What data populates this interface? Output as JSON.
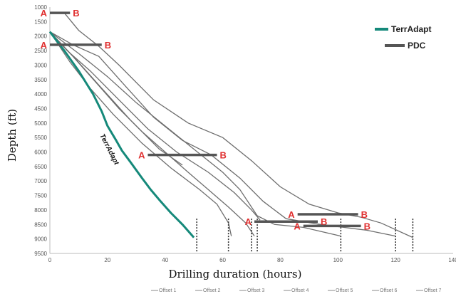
{
  "chart_data": {
    "type": "line",
    "xlabel": "Drilling duration (hours)",
    "ylabel": "Depth (ft)",
    "xlim": [
      0,
      140
    ],
    "ylim": [
      9500,
      1000
    ],
    "x_ticks": [
      "0",
      "20",
      "40",
      "60",
      "80",
      "100",
      "120",
      "140"
    ],
    "y_ticks": [
      "1000",
      "1500",
      "2000",
      "2500",
      "3000",
      "3500",
      "4000",
      "4500",
      "5000",
      "5500",
      "6000",
      "6500",
      "7000",
      "7500",
      "8000",
      "8500",
      "9000",
      "9500"
    ],
    "grid": false,
    "legend_placement": "top-right",
    "legend": [
      {
        "label": "TerrAdapt",
        "color": "#15897a"
      },
      {
        "label": "PDC",
        "color": "#555555"
      }
    ],
    "series_annotation": "TerrAdapt",
    "terradapt": {
      "color": "#15897a",
      "points": [
        [
          0,
          1850
        ],
        [
          5,
          2500
        ],
        [
          10,
          3200
        ],
        [
          15,
          4000
        ],
        [
          18,
          4600
        ],
        [
          20,
          5100
        ],
        [
          23,
          5600
        ],
        [
          25,
          5950
        ],
        [
          28,
          6350
        ],
        [
          32,
          6900
        ],
        [
          35,
          7300
        ],
        [
          38,
          7650
        ],
        [
          42,
          8100
        ],
        [
          46,
          8500
        ],
        [
          50,
          8950
        ]
      ]
    },
    "offsets": {
      "color": "#6e6e6e",
      "labels": [
        "Offset 1",
        "Offset 2",
        "Offset 3",
        "Offset 4",
        "Offset 5",
        "Offset 6",
        "Offset 7"
      ],
      "series": [
        {
          "name": "Offset 1",
          "points": [
            [
              0,
              1850
            ],
            [
              8,
              2700
            ],
            [
              16,
              3600
            ],
            [
              24,
              4500
            ],
            [
              32,
              5300
            ],
            [
              40,
              6000
            ],
            [
              48,
              6700
            ],
            [
              55,
              7300
            ],
            [
              62,
              7900
            ],
            [
              68,
              8450
            ],
            [
              71,
              8900
            ]
          ]
        },
        {
          "name": "Offset 2",
          "points": [
            [
              0,
              1850
            ],
            [
              10,
              2600
            ],
            [
              20,
              3400
            ],
            [
              30,
              4300
            ],
            [
              40,
              5100
            ],
            [
              50,
              5900
            ],
            [
              60,
              6700
            ],
            [
              66,
              7300
            ],
            [
              72,
              8200
            ],
            [
              78,
              8500
            ],
            [
              88,
              8600
            ],
            [
              101,
              8900
            ]
          ]
        },
        {
          "name": "Offset 3",
          "points": [
            [
              0,
              1850
            ],
            [
              7,
              2900
            ],
            [
              14,
              3800
            ],
            [
              22,
              4700
            ],
            [
              32,
              5700
            ],
            [
              42,
              6550
            ],
            [
              52,
              7300
            ],
            [
              58,
              7800
            ],
            [
              62,
              8450
            ],
            [
              63,
              8900
            ]
          ]
        },
        {
          "name": "Offset 4",
          "points": [
            [
              0,
              1850
            ],
            [
              8,
              2300
            ],
            [
              17,
              2700
            ],
            [
              26,
              3700
            ],
            [
              36,
              4800
            ],
            [
              46,
              5600
            ],
            [
              56,
              6100
            ],
            [
              66,
              6900
            ],
            [
              74,
              7700
            ],
            [
              82,
              8300
            ],
            [
              94,
              8500
            ],
            [
              102,
              8600
            ],
            [
              110,
              8700
            ],
            [
              120,
              8900
            ]
          ]
        },
        {
          "name": "Offset 5",
          "points": [
            [
              5,
              1200
            ],
            [
              10,
              1800
            ],
            [
              17,
              2350
            ],
            [
              24,
              3000
            ],
            [
              36,
              4200
            ],
            [
              48,
              5000
            ],
            [
              60,
              5500
            ],
            [
              70,
              6300
            ],
            [
              80,
              7200
            ],
            [
              90,
              7800
            ],
            [
              100,
              8100
            ],
            [
              108,
              8250
            ],
            [
              115,
              8450
            ],
            [
              126,
              8950
            ]
          ]
        },
        {
          "name": "Offset 6",
          "points": [
            [
              0,
              1850
            ],
            [
              9,
              2800
            ],
            [
              18,
              3800
            ],
            [
              28,
              4900
            ],
            [
              38,
              5900
            ],
            [
              46,
              6450
            ]
          ]
        },
        {
          "name": "Offset 7",
          "points": [
            [
              0,
              1850
            ],
            [
              6,
              2500
            ],
            [
              14,
              3200
            ],
            [
              24,
              4200
            ],
            [
              34,
              5200
            ],
            [
              44,
              6000
            ],
            [
              55,
              6700
            ],
            [
              64,
              7400
            ],
            [
              70,
              8000
            ],
            [
              73,
              8350
            ]
          ]
        }
      ],
      "end_marks": [
        51,
        62,
        70,
        72,
        101,
        120,
        126
      ]
    },
    "pdc_runs": [
      {
        "a": [
          0,
          1200
        ],
        "b": [
          7,
          1200
        ],
        "a_label": "A",
        "b_label": "B"
      },
      {
        "a": [
          0,
          2300
        ],
        "b": [
          18,
          2300
        ],
        "a_label": "A",
        "b_label": "B"
      },
      {
        "a": [
          34,
          6100
        ],
        "b": [
          58,
          6100
        ],
        "a_label": "A",
        "b_label": "B"
      },
      {
        "a": [
          71,
          8400
        ],
        "b": [
          93,
          8400
        ],
        "a_label": "A",
        "b_label": "B"
      },
      {
        "a": [
          86,
          8150
        ],
        "b": [
          107,
          8150
        ],
        "a_label": "A",
        "b_label": "B"
      },
      {
        "a": [
          88,
          8550
        ],
        "b": [
          108,
          8550
        ],
        "a_label": "A",
        "b_label": "B"
      }
    ]
  }
}
